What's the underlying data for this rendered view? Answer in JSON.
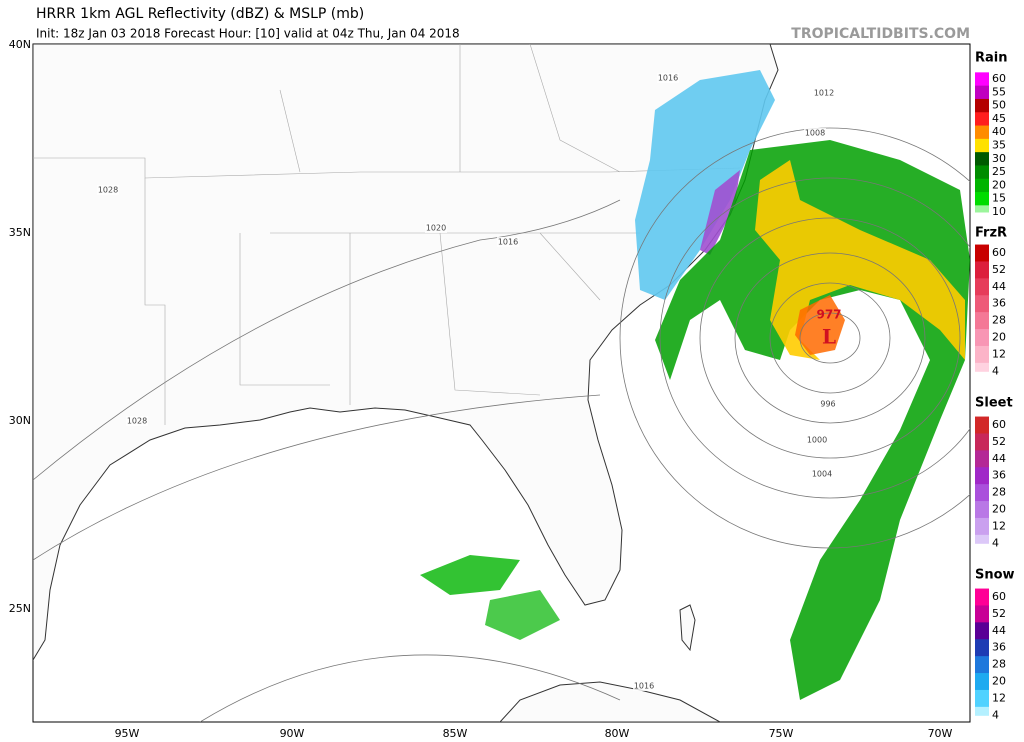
{
  "header": {
    "title": "HRRR 1km AGL Reflectivity (dBZ) & MSLP (mb)",
    "subtitle": "Init: 18z Jan 03 2018   Forecast Hour: [10]   valid at 04z Thu, Jan 04 2018",
    "site": "TROPICALTIDBITS.COM"
  },
  "map": {
    "lat_labels": [
      "40N",
      "35N",
      "30N",
      "25N"
    ],
    "lon_labels": [
      "95W",
      "90W",
      "85W",
      "80W",
      "75W",
      "70W"
    ],
    "isobar_labels": [
      "1016",
      "1012",
      "1008",
      "1028",
      "1020",
      "1016",
      "1028",
      "996",
      "1000",
      "1004",
      "1016"
    ],
    "low_pressure": "977",
    "low_symbol": "L"
  },
  "legend": [
    {
      "title": "Rain",
      "ticks": [
        60,
        55,
        50,
        45,
        40,
        35,
        30,
        25,
        20,
        15,
        10
      ],
      "colors": [
        "#ff00ff",
        "#c000c0",
        "#b40000",
        "#ff1e1e",
        "#ff8c00",
        "#ffe100",
        "#005a00",
        "#008c00",
        "#00b400",
        "#00dc00",
        "#9cf59c"
      ]
    },
    {
      "title": "FrzR",
      "ticks": [
        60,
        52,
        44,
        36,
        28,
        20,
        12,
        4
      ],
      "colors": [
        "#c80000",
        "#dc1e3c",
        "#e63c5a",
        "#ee5a78",
        "#f47896",
        "#f896b4",
        "#fcb4c8",
        "#ffd2e0"
      ]
    },
    {
      "title": "Sleet",
      "ticks": [
        60,
        52,
        44,
        36,
        28,
        20,
        12,
        4
      ],
      "colors": [
        "#d22828",
        "#c8285a",
        "#b42896",
        "#a028c8",
        "#aa50dc",
        "#b978e6",
        "#caa0ef",
        "#dcc8f8"
      ]
    },
    {
      "title": "Snow",
      "ticks": [
        60,
        52,
        44,
        36,
        28,
        20,
        12,
        4
      ],
      "colors": [
        "#ff0096",
        "#c80096",
        "#5a0096",
        "#1e3cb4",
        "#1e78dc",
        "#1eaaf0",
        "#50d2ff",
        "#b4f0ff"
      ]
    }
  ]
}
